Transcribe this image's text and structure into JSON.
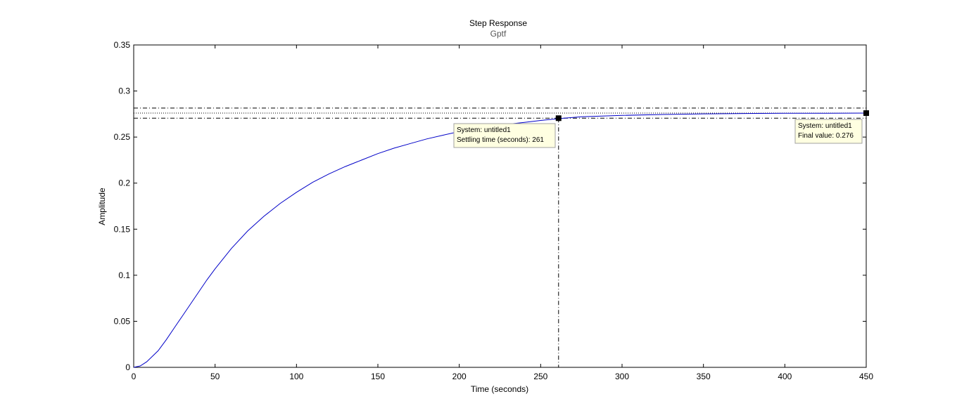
{
  "chart_data": {
    "type": "line",
    "title": "Step Response",
    "subtitle": "Gptf",
    "xlabel": "Time (seconds)",
    "ylabel": "Amplitude",
    "xlim": [
      0,
      450
    ],
    "ylim": [
      0,
      0.35
    ],
    "xticks": [
      "0",
      "50",
      "100",
      "150",
      "200",
      "250",
      "300",
      "350",
      "400",
      "450"
    ],
    "yticks": [
      "0",
      "0.05",
      "0.1",
      "0.15",
      "0.2",
      "0.25",
      "0.3",
      "0.35"
    ],
    "grid": false,
    "line_color": "#0000c8",
    "series": [
      {
        "x": [
          0,
          4,
          8,
          15,
          20,
          25,
          30,
          35,
          40,
          45,
          50,
          60,
          70,
          80,
          90,
          100,
          110,
          120,
          130,
          140,
          150,
          160,
          170,
          180,
          190,
          200,
          210,
          220,
          230,
          240,
          250,
          261,
          275,
          300,
          325,
          350,
          375,
          400,
          425,
          450
        ],
        "y": [
          0,
          0.0015,
          0.006,
          0.018,
          0.03,
          0.043,
          0.056,
          0.069,
          0.082,
          0.095,
          0.107,
          0.129,
          0.148,
          0.164,
          0.178,
          0.19,
          0.201,
          0.21,
          0.218,
          0.225,
          0.232,
          0.238,
          0.243,
          0.248,
          0.252,
          0.256,
          0.259,
          0.262,
          0.264,
          0.266,
          0.268,
          0.27,
          0.272,
          0.2735,
          0.2745,
          0.2752,
          0.2756,
          0.2758,
          0.2759,
          0.276
        ]
      }
    ],
    "settling_band": [
      0.2705,
      0.2815
    ],
    "final_value_line": 0.276,
    "settling_time": 261,
    "settling_value": 0.2705,
    "final_point": [
      450,
      0.276
    ],
    "datatips": [
      {
        "line1": "System: untitled1",
        "line2": "Settling time (seconds): 261"
      },
      {
        "line1": "System: untitled1",
        "line2": "Final value: 0.276"
      }
    ]
  }
}
